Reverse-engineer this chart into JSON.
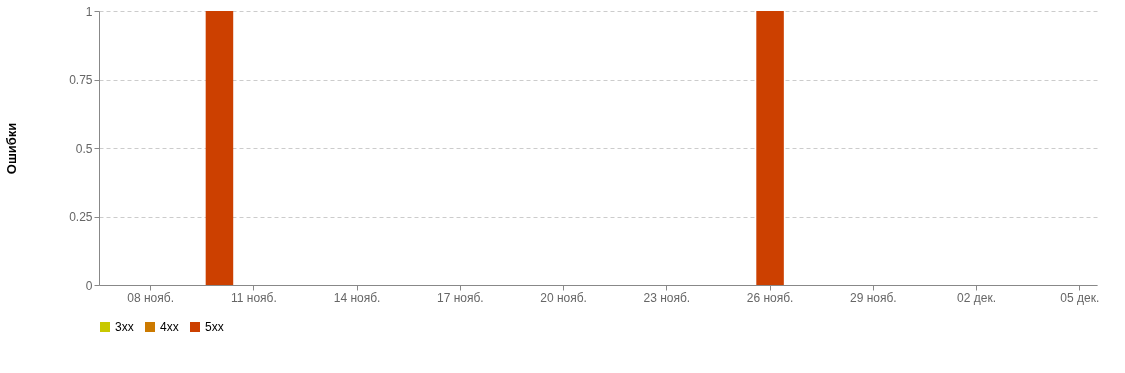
{
  "chart_data": {
    "type": "bar",
    "stacked": true,
    "ylabel": "Ошибки",
    "categories": [
      null,
      "08 нояб.",
      null,
      null,
      "11 нояб.",
      null,
      null,
      "14 нояб.",
      null,
      null,
      "17 нояб.",
      null,
      null,
      "20 нояб.",
      null,
      null,
      "23 нояб.",
      null,
      null,
      "26 нояб.",
      null,
      null,
      "29 нояб.",
      null,
      null,
      "02 дек.",
      null,
      null,
      "05 дек."
    ],
    "series": [
      {
        "name": "3xx",
        "color": "#c8c800",
        "values": [
          0,
          0,
          0,
          0,
          0,
          0,
          0,
          0,
          0,
          0,
          0,
          0,
          0,
          0,
          0,
          0,
          0,
          0,
          0,
          0,
          0,
          0,
          0,
          0,
          0,
          0,
          0,
          0,
          0
        ]
      },
      {
        "name": "4xx",
        "color": "#cc7a00",
        "values": [
          0,
          0,
          0,
          0,
          0,
          0,
          0,
          0,
          0,
          0,
          0,
          0,
          0,
          0,
          0,
          0,
          0,
          0,
          0,
          0,
          0,
          0,
          0,
          0,
          0,
          0,
          0,
          0,
          0
        ]
      },
      {
        "name": "5xx",
        "color": "#cc4000",
        "values": [
          0,
          0,
          0,
          1,
          0,
          0,
          0,
          0,
          0,
          0,
          0,
          0,
          0,
          0,
          0,
          0,
          0,
          0,
          0,
          1,
          0,
          0,
          0,
          0,
          0,
          0,
          0,
          0,
          0
        ]
      }
    ],
    "ylim": [
      0,
      1
    ],
    "yticks": [
      0,
      0.25,
      0.5,
      0.75,
      1
    ],
    "grid": "y",
    "legend": "bottom"
  }
}
